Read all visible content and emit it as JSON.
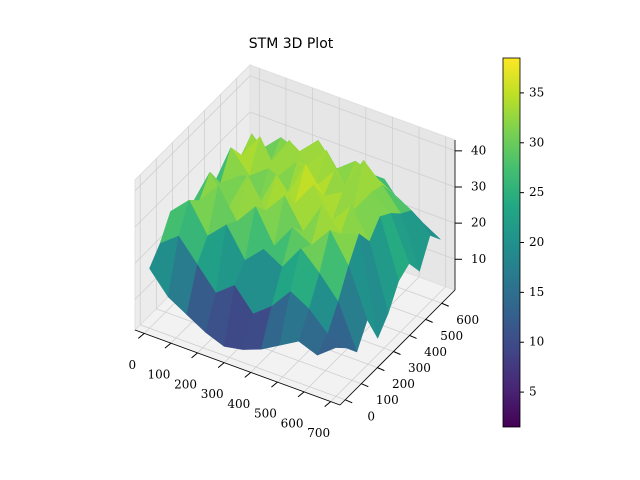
{
  "chart_data": {
    "type": "surface3d",
    "title": "STM 3D Plot",
    "x": [
      0,
      70,
      140,
      210,
      280,
      350,
      420,
      490,
      560,
      630,
      700
    ],
    "y": [
      0,
      65,
      130,
      195,
      260,
      325,
      390,
      455,
      520,
      585,
      650
    ],
    "z": [
      [
        18,
        12,
        9,
        6,
        4,
        5,
        7,
        10,
        13,
        11,
        15
      ],
      [
        22,
        26,
        20,
        14,
        18,
        12,
        16,
        22,
        19,
        14,
        12
      ],
      [
        28,
        33,
        25,
        30,
        22,
        27,
        24,
        31,
        26,
        20,
        8
      ],
      [
        20,
        30,
        36,
        28,
        34,
        25,
        32,
        29,
        35,
        27,
        14
      ],
      [
        24,
        35,
        27,
        38,
        30,
        36,
        28,
        37,
        31,
        33,
        6
      ],
      [
        19,
        29,
        33,
        26,
        37,
        31,
        38,
        30,
        36,
        28,
        10
      ],
      [
        23,
        36,
        30,
        34,
        28,
        39,
        32,
        35,
        29,
        32,
        16
      ],
      [
        17,
        31,
        38,
        29,
        35,
        30,
        36,
        27,
        34,
        30,
        18
      ],
      [
        21,
        34,
        28,
        36,
        31,
        37,
        29,
        38,
        33,
        27,
        13
      ],
      [
        16,
        27,
        32,
        30,
        35,
        29,
        33,
        31,
        28,
        25,
        20
      ],
      [
        14,
        20,
        25,
        22,
        26,
        24,
        23,
        27,
        21,
        19,
        16
      ]
    ],
    "xlim": [
      -35,
      735
    ],
    "ylim": [
      -32.5,
      682.5
    ],
    "zlim": [
      1.5,
      43
    ],
    "xticks": [
      0,
      100,
      200,
      300,
      400,
      500,
      600,
      700
    ],
    "yticks": [
      0,
      100,
      200,
      300,
      400,
      500,
      600
    ],
    "zticks": [
      10,
      20,
      30,
      40
    ],
    "colormap": [
      "#440154",
      "#482475",
      "#414487",
      "#355f8d",
      "#2a788e",
      "#21918c",
      "#22a884",
      "#44bf70",
      "#7ad151",
      "#bddf26",
      "#fde725"
    ],
    "clim": [
      1.5,
      38.5
    ],
    "cticks": [
      5,
      10,
      15,
      20,
      25,
      30,
      35
    ],
    "grid": true
  }
}
